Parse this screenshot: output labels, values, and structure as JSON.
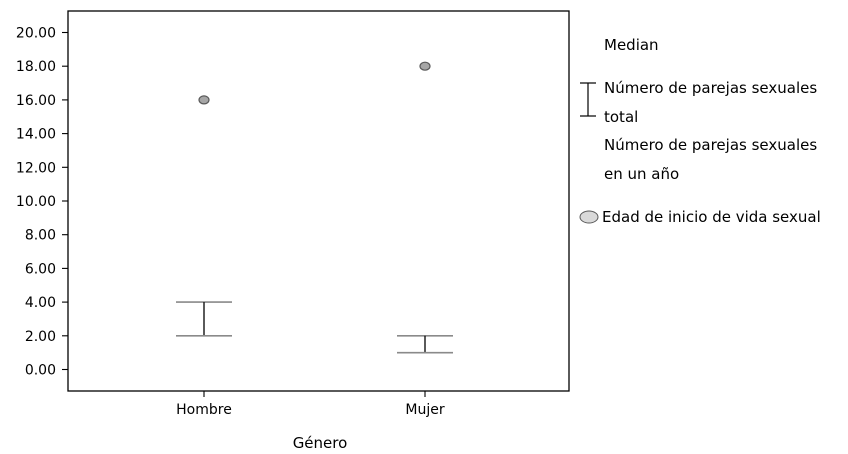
{
  "chart_data": {
    "type": "scatter",
    "title": "",
    "xlabel": "Género",
    "ylabel": "",
    "categories": [
      "Hombre",
      "Mujer"
    ],
    "y_ticks": [
      "0.00",
      "2.00",
      "4.00",
      "6.00",
      "8.00",
      "10.00",
      "12.00",
      "14.00",
      "16.00",
      "18.00",
      "20.00"
    ],
    "ylim": [
      -1.3,
      21.6
    ],
    "grid": false,
    "legend_position": "right",
    "legend": {
      "median": "Median",
      "range_total": "Número de parejas sexuales total",
      "range_year": "Número de parejas sexuales en un año",
      "points": "Edad de inicio de vida sexual"
    },
    "series": [
      {
        "name": "Número de parejas sexuales total",
        "style": "range",
        "color": "#000000",
        "values": [
          null,
          null
        ]
      },
      {
        "name": "Número de parejas sexuales en un año",
        "style": "range",
        "color": "#000000",
        "values": [
          [
            2,
            4
          ],
          [
            1,
            2
          ]
        ]
      },
      {
        "name": "Edad de inicio de vida sexual",
        "style": "point",
        "color": "#a6a6a6",
        "values": [
          16,
          18
        ]
      }
    ],
    "colors": {
      "frame": "#000000",
      "range": "#000000",
      "point_fill": "#a6a6a6",
      "point_stroke": "#595959"
    }
  }
}
